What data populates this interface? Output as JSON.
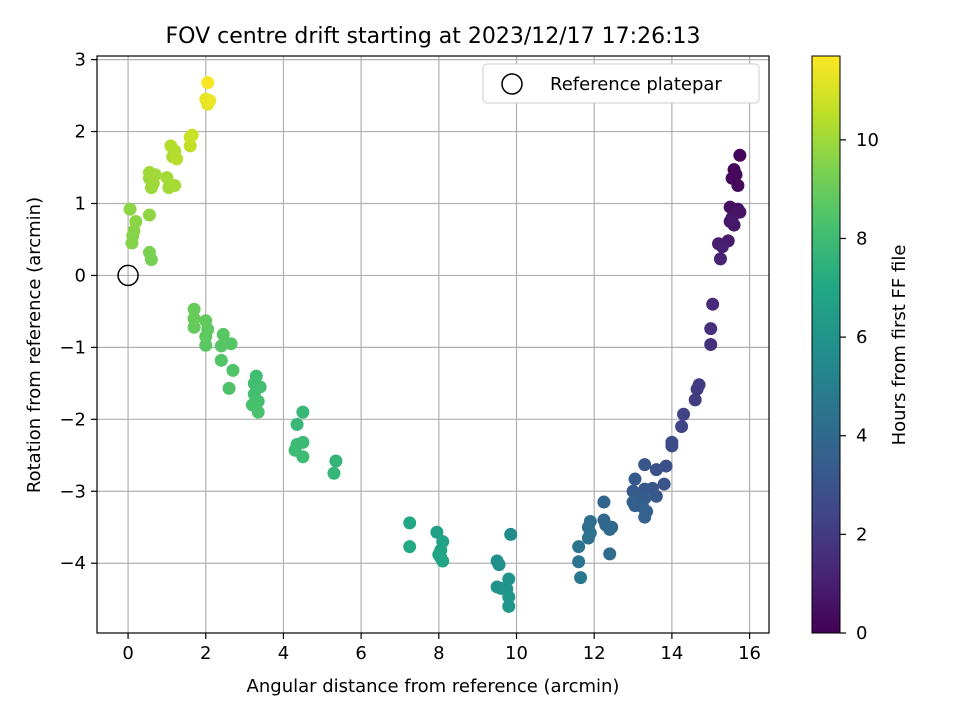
{
  "chart_data": {
    "type": "scatter",
    "title": "FOV centre drift starting at 2023/12/17 17:26:13",
    "xlabel": "Angular distance from reference (arcmin)",
    "ylabel": "Rotation from reference (arcmin)",
    "xlim": [
      -0.8,
      16.5
    ],
    "ylim": [
      -4.97,
      3.05
    ],
    "xticks": [
      0,
      2,
      4,
      6,
      8,
      10,
      12,
      14,
      16
    ],
    "yticks": [
      -4,
      -3,
      -2,
      -1,
      0,
      1,
      2,
      3
    ],
    "grid": true,
    "legend": {
      "position": "top-right",
      "entries": [
        "Reference platepar"
      ]
    },
    "reference_point": {
      "x": 0,
      "y": 0
    },
    "colorbar": {
      "label": "Hours from first FF file",
      "range": [
        0,
        11.7
      ],
      "ticks": [
        0,
        2,
        4,
        6,
        8,
        10
      ],
      "colormap": "viridis"
    },
    "points": [
      {
        "x": 15.75,
        "y": 1.67,
        "h": 0.1
      },
      {
        "x": 15.6,
        "y": 1.47,
        "h": 0.2
      },
      {
        "x": 15.55,
        "y": 1.35,
        "h": 0.3
      },
      {
        "x": 15.7,
        "y": 1.25,
        "h": 0.3
      },
      {
        "x": 15.65,
        "y": 1.4,
        "h": 0.25
      },
      {
        "x": 15.5,
        "y": 0.95,
        "h": 0.5
      },
      {
        "x": 15.7,
        "y": 0.92,
        "h": 0.5
      },
      {
        "x": 15.6,
        "y": 0.85,
        "h": 0.6
      },
      {
        "x": 15.75,
        "y": 0.88,
        "h": 0.6
      },
      {
        "x": 15.55,
        "y": 0.8,
        "h": 0.7
      },
      {
        "x": 15.6,
        "y": 0.7,
        "h": 0.7
      },
      {
        "x": 15.5,
        "y": 0.75,
        "h": 0.75
      },
      {
        "x": 15.45,
        "y": 0.48,
        "h": 0.9
      },
      {
        "x": 15.2,
        "y": 0.44,
        "h": 1.0
      },
      {
        "x": 15.3,
        "y": 0.4,
        "h": 1.05
      },
      {
        "x": 15.25,
        "y": 0.23,
        "h": 1.1
      },
      {
        "x": 15.05,
        "y": -0.4,
        "h": 1.4
      },
      {
        "x": 15.0,
        "y": -0.74,
        "h": 1.6
      },
      {
        "x": 15.0,
        "y": -0.96,
        "h": 1.7
      },
      {
        "x": 14.7,
        "y": -1.52,
        "h": 2.0
      },
      {
        "x": 14.65,
        "y": -1.58,
        "h": 2.05
      },
      {
        "x": 14.6,
        "y": -1.73,
        "h": 2.1
      },
      {
        "x": 14.3,
        "y": -1.93,
        "h": 2.3
      },
      {
        "x": 14.25,
        "y": -2.1,
        "h": 2.4
      },
      {
        "x": 14.0,
        "y": -2.32,
        "h": 2.6
      },
      {
        "x": 14.0,
        "y": -2.37,
        "h": 2.65
      },
      {
        "x": 13.85,
        "y": -2.65,
        "h": 2.8
      },
      {
        "x": 13.6,
        "y": -2.7,
        "h": 2.9
      },
      {
        "x": 13.8,
        "y": -2.9,
        "h": 3.0
      },
      {
        "x": 13.3,
        "y": -2.63,
        "h": 3.1
      },
      {
        "x": 13.5,
        "y": -2.96,
        "h": 3.1
      },
      {
        "x": 13.6,
        "y": -3.07,
        "h": 3.2
      },
      {
        "x": 13.3,
        "y": -2.97,
        "h": 3.2
      },
      {
        "x": 13.05,
        "y": -2.83,
        "h": 3.3
      },
      {
        "x": 13.0,
        "y": -3.0,
        "h": 3.3
      },
      {
        "x": 13.1,
        "y": -3.05,
        "h": 3.4
      },
      {
        "x": 13.3,
        "y": -3.1,
        "h": 3.4
      },
      {
        "x": 13.0,
        "y": -3.15,
        "h": 3.5
      },
      {
        "x": 13.05,
        "y": -3.2,
        "h": 3.5
      },
      {
        "x": 13.25,
        "y": -3.22,
        "h": 3.55
      },
      {
        "x": 13.3,
        "y": -3.36,
        "h": 3.6
      },
      {
        "x": 13.35,
        "y": -3.28,
        "h": 3.6
      },
      {
        "x": 12.25,
        "y": -3.15,
        "h": 3.8
      },
      {
        "x": 12.25,
        "y": -3.4,
        "h": 3.9
      },
      {
        "x": 12.3,
        "y": -3.47,
        "h": 3.95
      },
      {
        "x": 12.45,
        "y": -3.5,
        "h": 4.0
      },
      {
        "x": 12.4,
        "y": -3.53,
        "h": 4.0
      },
      {
        "x": 12.4,
        "y": -3.87,
        "h": 4.1
      },
      {
        "x": 11.9,
        "y": -3.42,
        "h": 4.2
      },
      {
        "x": 11.85,
        "y": -3.5,
        "h": 4.3
      },
      {
        "x": 11.9,
        "y": -3.58,
        "h": 4.3
      },
      {
        "x": 11.85,
        "y": -3.65,
        "h": 4.4
      },
      {
        "x": 11.6,
        "y": -3.77,
        "h": 4.5
      },
      {
        "x": 11.6,
        "y": -3.98,
        "h": 4.6
      },
      {
        "x": 11.65,
        "y": -4.2,
        "h": 4.7
      },
      {
        "x": 9.85,
        "y": -3.6,
        "h": 5.6
      },
      {
        "x": 9.5,
        "y": -3.97,
        "h": 5.8
      },
      {
        "x": 9.55,
        "y": -4.02,
        "h": 5.8
      },
      {
        "x": 9.5,
        "y": -4.33,
        "h": 5.9
      },
      {
        "x": 9.6,
        "y": -4.35,
        "h": 5.9
      },
      {
        "x": 9.8,
        "y": -4.22,
        "h": 6.0
      },
      {
        "x": 9.75,
        "y": -4.36,
        "h": 6.0
      },
      {
        "x": 9.8,
        "y": -4.47,
        "h": 6.1
      },
      {
        "x": 9.8,
        "y": -4.6,
        "h": 6.1
      },
      {
        "x": 7.95,
        "y": -3.57,
        "h": 6.6
      },
      {
        "x": 8.1,
        "y": -3.7,
        "h": 6.7
      },
      {
        "x": 8.05,
        "y": -3.82,
        "h": 6.75
      },
      {
        "x": 8.0,
        "y": -3.88,
        "h": 6.8
      },
      {
        "x": 8.05,
        "y": -3.92,
        "h": 6.85
      },
      {
        "x": 8.1,
        "y": -3.97,
        "h": 6.9
      },
      {
        "x": 7.25,
        "y": -3.44,
        "h": 7.0
      },
      {
        "x": 7.25,
        "y": -3.77,
        "h": 7.05
      },
      {
        "x": 5.35,
        "y": -2.58,
        "h": 7.6
      },
      {
        "x": 5.3,
        "y": -2.75,
        "h": 7.7
      },
      {
        "x": 4.5,
        "y": -1.9,
        "h": 7.8
      },
      {
        "x": 4.35,
        "y": -2.07,
        "h": 7.8
      },
      {
        "x": 4.5,
        "y": -2.32,
        "h": 7.9
      },
      {
        "x": 4.35,
        "y": -2.35,
        "h": 7.9
      },
      {
        "x": 4.3,
        "y": -2.43,
        "h": 7.95
      },
      {
        "x": 4.5,
        "y": -2.52,
        "h": 8.0
      },
      {
        "x": 3.3,
        "y": -1.4,
        "h": 8.1
      },
      {
        "x": 3.25,
        "y": -1.5,
        "h": 8.1
      },
      {
        "x": 3.4,
        "y": -1.55,
        "h": 8.15
      },
      {
        "x": 3.25,
        "y": -1.65,
        "h": 8.2
      },
      {
        "x": 3.35,
        "y": -1.75,
        "h": 8.2
      },
      {
        "x": 3.2,
        "y": -1.8,
        "h": 8.25
      },
      {
        "x": 3.35,
        "y": -1.9,
        "h": 8.3
      },
      {
        "x": 2.6,
        "y": -1.57,
        "h": 8.4
      },
      {
        "x": 2.7,
        "y": -1.32,
        "h": 8.45
      },
      {
        "x": 2.4,
        "y": -1.18,
        "h": 8.5
      },
      {
        "x": 2.65,
        "y": -0.95,
        "h": 8.55
      },
      {
        "x": 2.4,
        "y": -0.98,
        "h": 8.6
      },
      {
        "x": 2.45,
        "y": -0.82,
        "h": 8.65
      },
      {
        "x": 2.0,
        "y": -0.97,
        "h": 8.7
      },
      {
        "x": 2.0,
        "y": -0.85,
        "h": 8.75
      },
      {
        "x": 2.05,
        "y": -0.75,
        "h": 8.8
      },
      {
        "x": 2.0,
        "y": -0.63,
        "h": 8.85
      },
      {
        "x": 1.7,
        "y": -0.72,
        "h": 8.9
      },
      {
        "x": 1.7,
        "y": -0.6,
        "h": 8.95
      },
      {
        "x": 1.7,
        "y": -0.47,
        "h": 9.0
      },
      {
        "x": 0.6,
        "y": 0.22,
        "h": 9.3
      },
      {
        "x": 0.55,
        "y": 0.32,
        "h": 9.35
      },
      {
        "x": 0.1,
        "y": 0.45,
        "h": 9.5
      },
      {
        "x": 0.12,
        "y": 0.55,
        "h": 9.55
      },
      {
        "x": 0.15,
        "y": 0.62,
        "h": 9.6
      },
      {
        "x": 0.2,
        "y": 0.75,
        "h": 9.65
      },
      {
        "x": 0.05,
        "y": 0.92,
        "h": 9.7
      },
      {
        "x": 0.55,
        "y": 0.84,
        "h": 9.75
      },
      {
        "x": 0.6,
        "y": 1.22,
        "h": 9.9
      },
      {
        "x": 0.55,
        "y": 1.35,
        "h": 9.95
      },
      {
        "x": 0.65,
        "y": 1.28,
        "h": 10.0
      },
      {
        "x": 0.55,
        "y": 1.43,
        "h": 10.0
      },
      {
        "x": 0.7,
        "y": 1.4,
        "h": 10.05
      },
      {
        "x": 1.0,
        "y": 1.36,
        "h": 10.1
      },
      {
        "x": 1.05,
        "y": 1.22,
        "h": 10.1
      },
      {
        "x": 1.2,
        "y": 1.25,
        "h": 10.15
      },
      {
        "x": 1.15,
        "y": 1.65,
        "h": 10.2
      },
      {
        "x": 1.2,
        "y": 1.73,
        "h": 10.3
      },
      {
        "x": 1.1,
        "y": 1.8,
        "h": 10.35
      },
      {
        "x": 1.25,
        "y": 1.62,
        "h": 10.4
      },
      {
        "x": 1.6,
        "y": 1.8,
        "h": 10.6
      },
      {
        "x": 1.6,
        "y": 1.92,
        "h": 10.7
      },
      {
        "x": 1.65,
        "y": 1.95,
        "h": 10.75
      },
      {
        "x": 2.05,
        "y": 2.38,
        "h": 11.2
      },
      {
        "x": 2.0,
        "y": 2.45,
        "h": 11.3
      },
      {
        "x": 2.1,
        "y": 2.43,
        "h": 11.35
      },
      {
        "x": 2.05,
        "y": 2.68,
        "h": 11.6
      }
    ]
  }
}
